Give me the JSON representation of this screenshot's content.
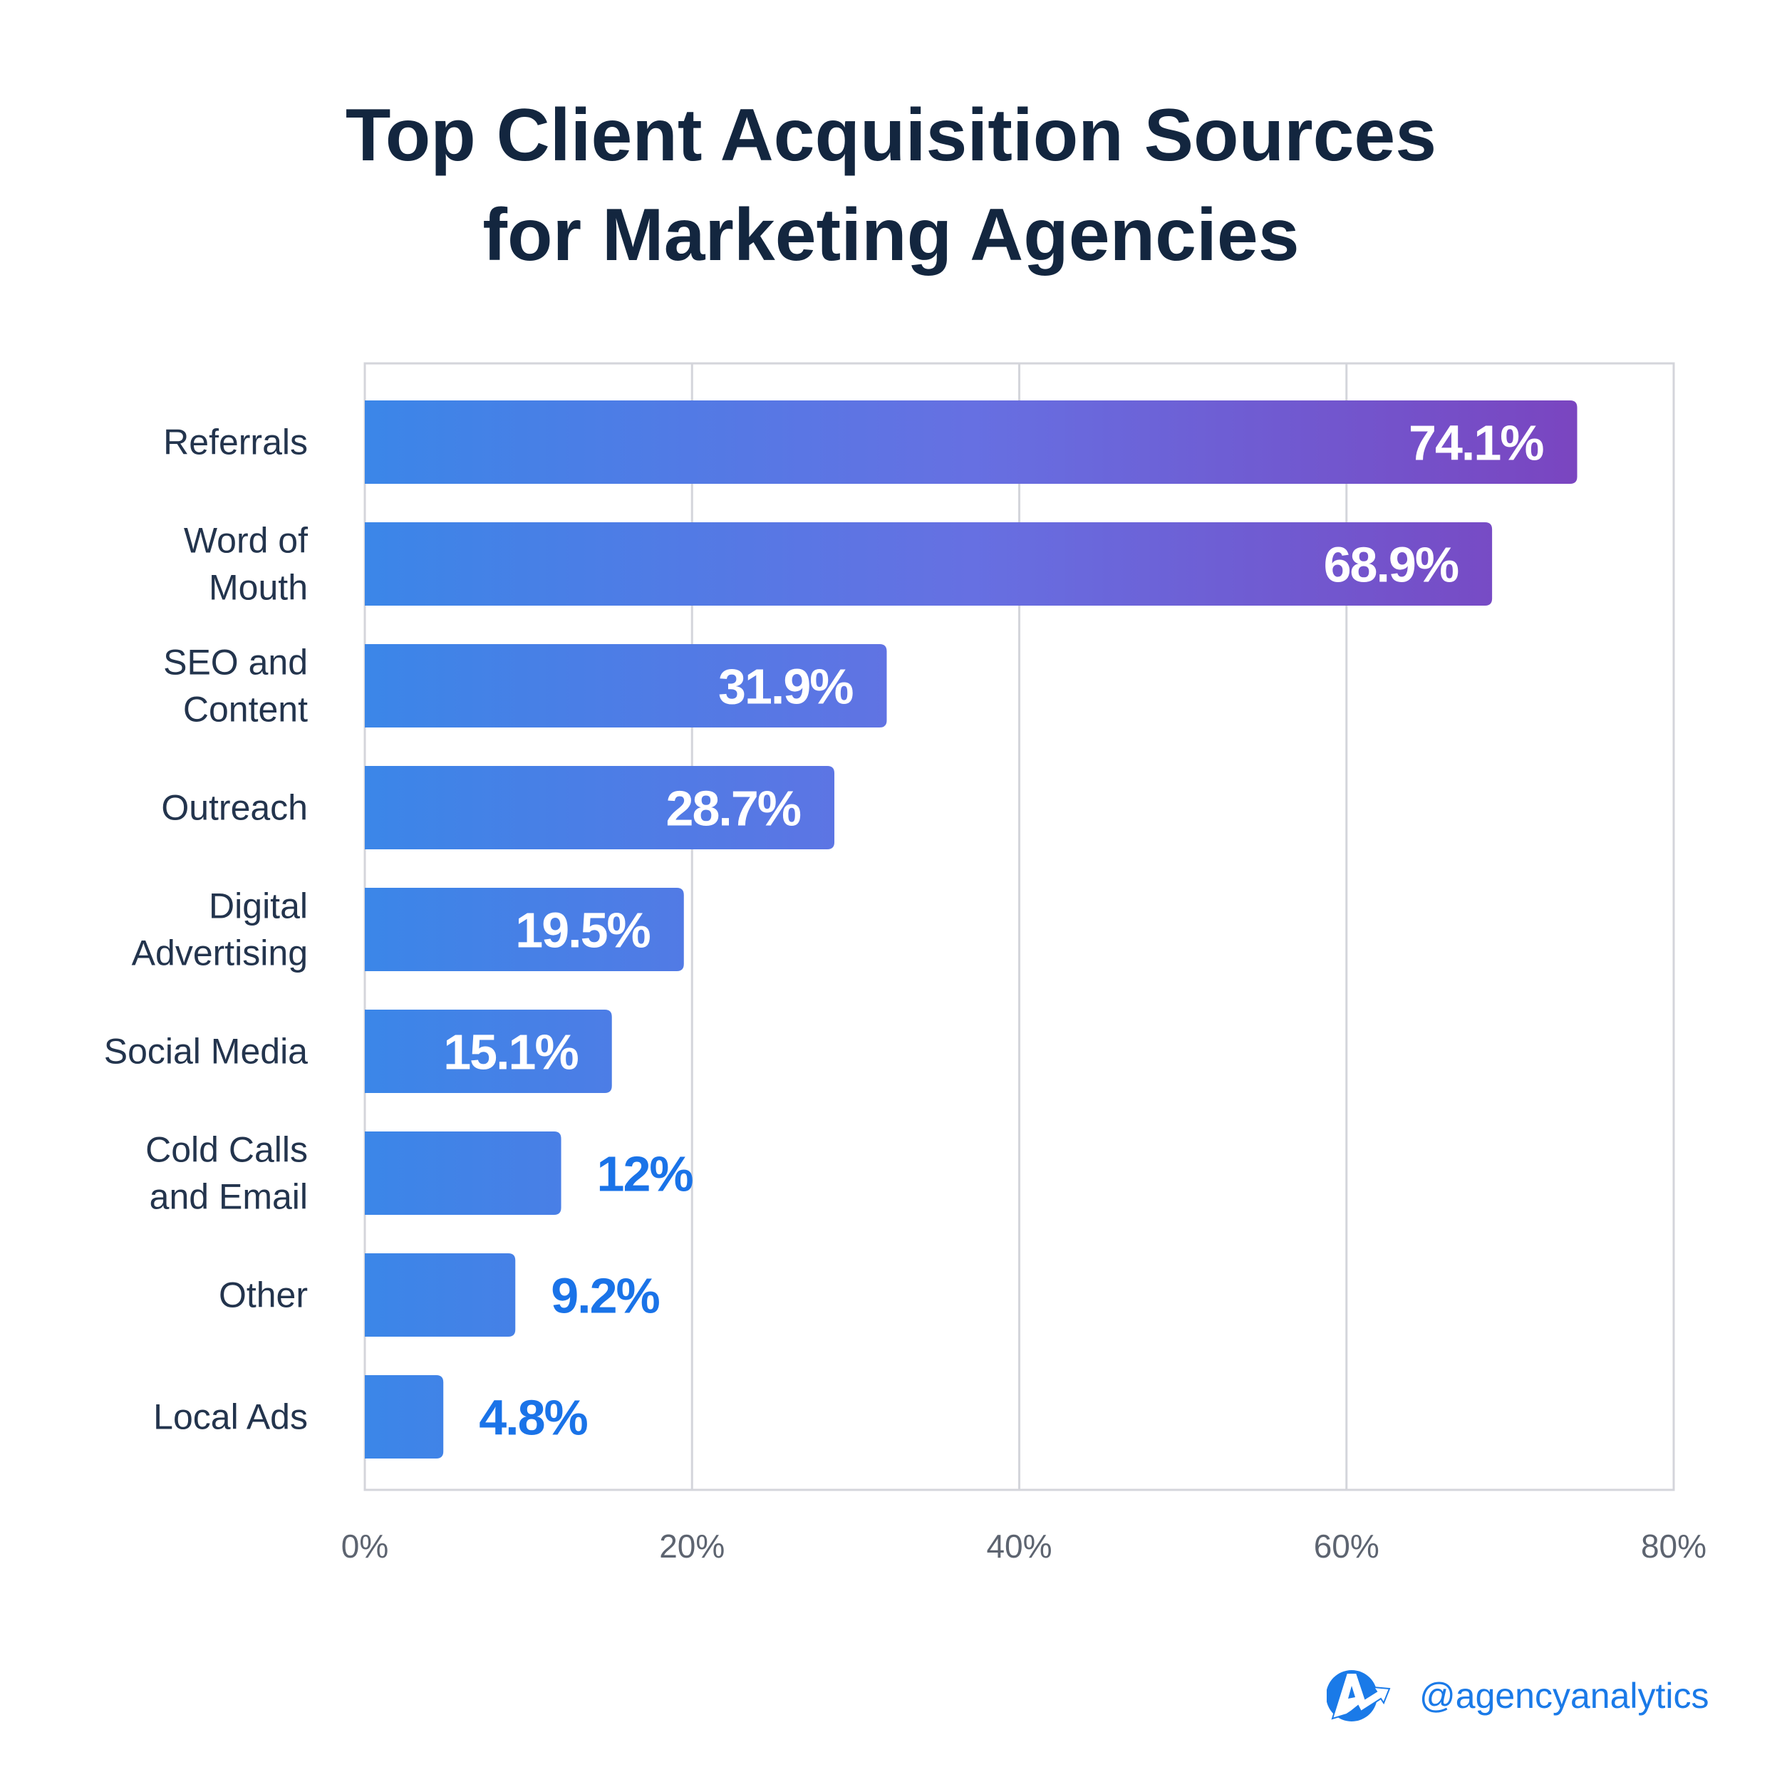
{
  "chart_data": {
    "type": "bar",
    "orientation": "horizontal",
    "title": [
      "Top Client Acquisition Sources",
      "for Marketing Agencies"
    ],
    "categories": [
      [
        "Referrals"
      ],
      [
        "Word of",
        "Mouth"
      ],
      [
        "SEO and",
        "Content"
      ],
      [
        "Outreach"
      ],
      [
        "Digital",
        "Advertising"
      ],
      [
        "Social Media"
      ],
      [
        "Cold Calls",
        "and Email"
      ],
      [
        "Other"
      ],
      [
        "Local Ads"
      ]
    ],
    "values": [
      74.1,
      68.9,
      31.9,
      28.7,
      19.5,
      15.1,
      12,
      9.2,
      4.8
    ],
    "value_labels": [
      "74.1%",
      "68.9%",
      "31.9%",
      "28.7%",
      "19.5%",
      "15.1%",
      "12%",
      "9.2%",
      "4.8%"
    ],
    "xlim": [
      0,
      80
    ],
    "x_ticks": [
      0,
      20,
      40,
      60,
      80
    ],
    "x_tick_labels": [
      "0%",
      "20%",
      "40%",
      "60%",
      "80%"
    ],
    "xlabel": "",
    "ylabel": "",
    "grid": true,
    "colors": {
      "gradient_start": "#3b86e8",
      "gradient_mid": "#6670e2",
      "gradient_end": "#7a45c0",
      "outside_label": "#1a73e8",
      "grid": "#d4d5db",
      "axis_text": "#5d6470",
      "category_text": "#23344d"
    }
  },
  "brand": {
    "handle": "@agencyanalytics",
    "logo_letter": "A"
  }
}
